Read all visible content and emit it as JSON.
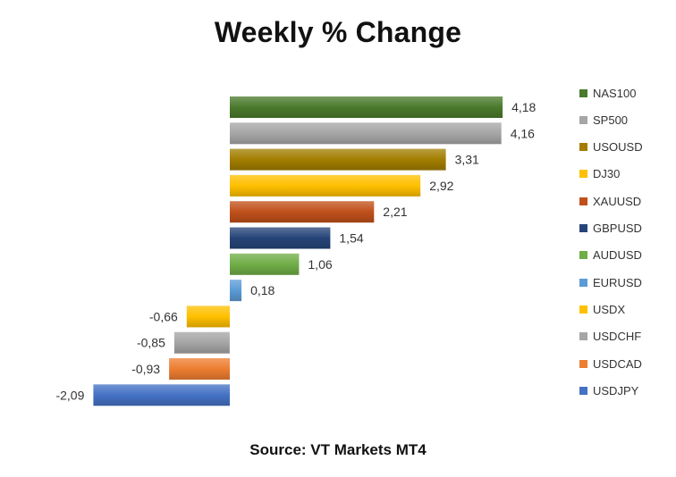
{
  "title": "Weekly % Change",
  "source": "Source: VT Markets MT4",
  "chart_data": {
    "type": "bar",
    "orientation": "horizontal",
    "title": "Weekly % Change",
    "categories": [
      "NAS100",
      "SP500",
      "USOUSD",
      "DJ30",
      "XAUUSD",
      "GBPUSD",
      "AUDUSD",
      "EURUSD",
      "USDX",
      "USDCHF",
      "USDCAD",
      "USDJPY"
    ],
    "values": [
      4.18,
      4.16,
      3.31,
      2.92,
      2.21,
      1.54,
      1.06,
      0.18,
      -0.66,
      -0.85,
      -0.93,
      -2.09
    ],
    "value_labels": [
      "4,18",
      "4,16",
      "3,31",
      "2,92",
      "2,21",
      "1,54",
      "1,06",
      "0,18",
      "-0,66",
      "-0,85",
      "-0,93",
      "-2,09"
    ],
    "colors": [
      "#4a7a2c",
      "#a6a6a6",
      "#a27d00",
      "#ffc000",
      "#c0501a",
      "#264478",
      "#70ad47",
      "#5b9bd5",
      "#ffc000",
      "#a5a5a5",
      "#ed7d31",
      "#4472c4"
    ],
    "xlim": [
      -2.09,
      4.18
    ],
    "grid": false,
    "legend_position": "right"
  }
}
